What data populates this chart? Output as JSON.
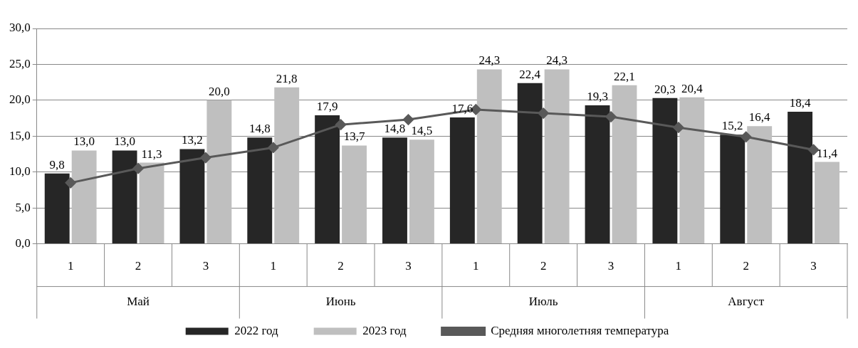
{
  "chart_data": {
    "type": "bar",
    "categories": [
      "1",
      "2",
      "3",
      "1",
      "2",
      "3",
      "1",
      "2",
      "3",
      "1",
      "2",
      "3"
    ],
    "annotations": [
      "Май",
      "Июнь",
      "Июль",
      "Август"
    ],
    "series": [
      {
        "name": "2022 год",
        "color": "#262626",
        "values": [
          9.8,
          13.0,
          13.2,
          14.8,
          17.9,
          14.8,
          17.6,
          22.4,
          19.3,
          20.3,
          15.2,
          18.4
        ],
        "value_labels": [
          "9,8",
          "13,0",
          "13,2",
          "14,8",
          "17,9",
          "14,8",
          "17,6",
          "22,4",
          "19,3",
          "20,3",
          "15,2",
          "18,4"
        ]
      },
      {
        "name": "2023 год",
        "color": "#bfbfbf",
        "values": [
          13.0,
          11.3,
          20.0,
          21.8,
          13.7,
          14.5,
          24.3,
          24.3,
          22.1,
          20.4,
          16.4,
          11.4
        ],
        "value_labels": [
          "13,0",
          "11,3",
          "20,0",
          "21,8",
          "13,7",
          "14,5",
          "24,3",
          "24,3",
          "22,1",
          "20,4",
          "16,4",
          "11,4"
        ]
      },
      {
        "name": "Средняя многолетняя температура",
        "type": "line",
        "color": "#595959",
        "marker": "diamond",
        "values": [
          8.5,
          10.5,
          12.0,
          13.4,
          16.6,
          17.3,
          18.7,
          18.2,
          17.7,
          16.2,
          14.9,
          13.1
        ]
      }
    ],
    "ylim": [
      0,
      30
    ],
    "yticks": [
      {
        "value": 0,
        "label": "0,0"
      },
      {
        "value": 5,
        "label": "5,0"
      },
      {
        "value": 10,
        "label": "10,0"
      },
      {
        "value": 15,
        "label": "15,0"
      },
      {
        "value": 20,
        "label": "20,0"
      },
      {
        "value": 25,
        "label": "25,0"
      },
      {
        "value": 30,
        "label": "30,0"
      }
    ],
    "grid": "y",
    "legend": "bottom"
  }
}
